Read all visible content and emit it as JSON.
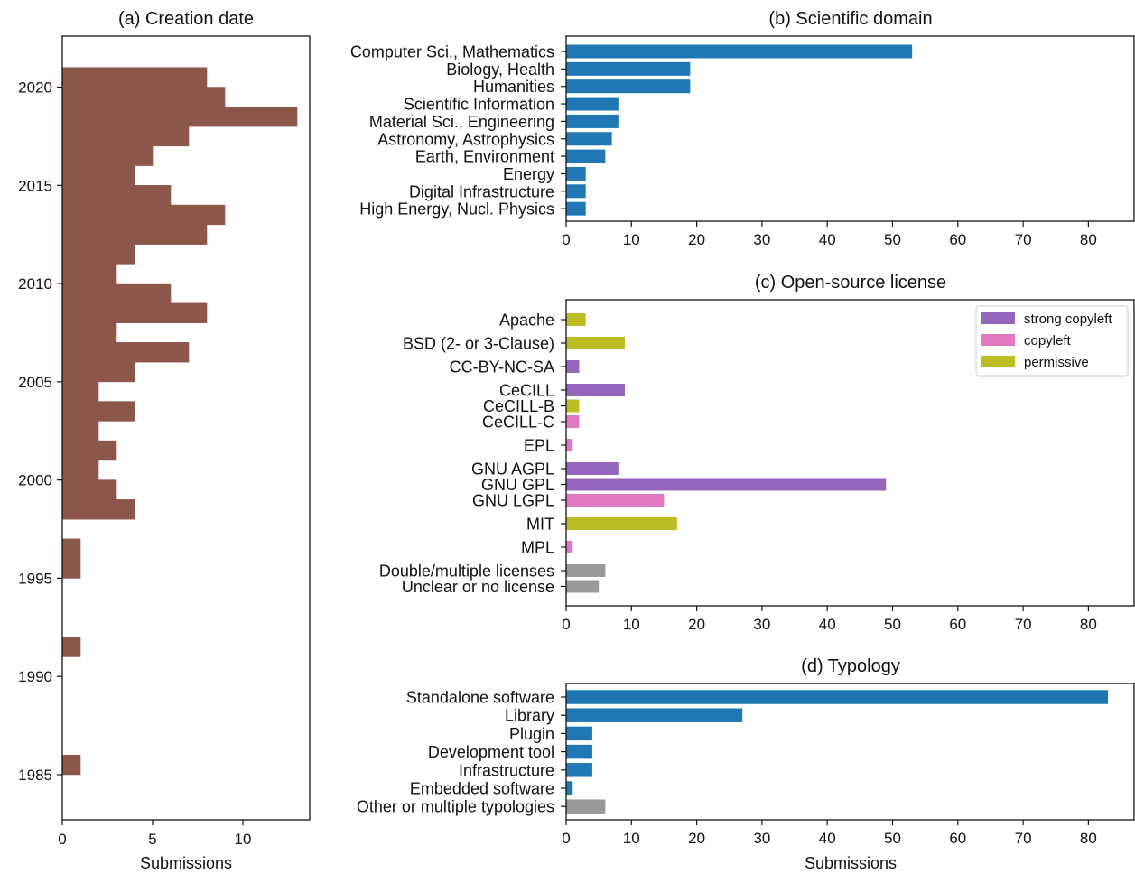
{
  "chart_data": [
    {
      "type": "bar",
      "orientation": "horizontal",
      "title": "(a) Creation date",
      "xlabel": "Submissions",
      "ylabel": "",
      "xlim": [
        0,
        13.7
      ],
      "ylim": [
        1982.7,
        2022.6
      ],
      "xticks": [
        0,
        5,
        10
      ],
      "yticks": [
        1985,
        1990,
        1995,
        2000,
        2005,
        2010,
        2015,
        2020
      ],
      "color": "#8c564b",
      "bins": [
        {
          "year": 1985,
          "value": 1
        },
        {
          "year": 1991,
          "value": 1
        },
        {
          "year": 1995,
          "value": 1
        },
        {
          "year": 1996,
          "value": 1
        },
        {
          "year": 1998,
          "value": 4
        },
        {
          "year": 1999,
          "value": 3
        },
        {
          "year": 2000,
          "value": 2
        },
        {
          "year": 2001,
          "value": 3
        },
        {
          "year": 2002,
          "value": 2
        },
        {
          "year": 2003,
          "value": 4
        },
        {
          "year": 2004,
          "value": 2
        },
        {
          "year": 2005,
          "value": 4
        },
        {
          "year": 2006,
          "value": 7
        },
        {
          "year": 2007,
          "value": 3
        },
        {
          "year": 2008,
          "value": 8
        },
        {
          "year": 2009,
          "value": 6
        },
        {
          "year": 2010,
          "value": 3
        },
        {
          "year": 2011,
          "value": 4
        },
        {
          "year": 2012,
          "value": 8
        },
        {
          "year": 2013,
          "value": 9
        },
        {
          "year": 2014,
          "value": 6
        },
        {
          "year": 2015,
          "value": 4
        },
        {
          "year": 2016,
          "value": 5
        },
        {
          "year": 2017,
          "value": 7
        },
        {
          "year": 2018,
          "value": 13
        },
        {
          "year": 2019,
          "value": 9
        },
        {
          "year": 2020,
          "value": 8
        }
      ]
    },
    {
      "type": "bar",
      "orientation": "horizontal",
      "title": "(b) Scientific domain",
      "xlabel": "",
      "xlim": [
        0,
        87
      ],
      "xticks": [
        0,
        10,
        20,
        30,
        40,
        50,
        60,
        70,
        80
      ],
      "categories": [
        "Computer Sci., Mathematics",
        "Biology, Health",
        "Humanities",
        "Scientific Information",
        "Material Sci., Engineering",
        "Astronomy, Astrophysics",
        "Earth, Environment",
        "Energy",
        "Digital Infrastructure",
        "High Energy, Nucl. Physics"
      ],
      "values": [
        53,
        19,
        19,
        8,
        8,
        7,
        6,
        3,
        3,
        3
      ],
      "color": "#1f77b4"
    },
    {
      "type": "bar",
      "orientation": "horizontal",
      "title": "(c) Open-source license",
      "xlabel": "",
      "xlim": [
        0,
        87
      ],
      "xticks": [
        0,
        10,
        20,
        30,
        40,
        50,
        60,
        70,
        80
      ],
      "categories": [
        "Apache",
        "BSD (2- or 3-Clause)",
        "CC-BY-NC-SA",
        "CeCILL",
        "CeCILL-B",
        "CeCILL-C",
        "EPL",
        "GNU AGPL",
        "GNU GPL",
        "GNU LGPL",
        "MIT",
        "MPL",
        "Double/multiple licenses",
        "Unclear or no license"
      ],
      "values": [
        3,
        9,
        2,
        9,
        2,
        2,
        1,
        8,
        49,
        15,
        17,
        1,
        6,
        5
      ],
      "bar_categories": [
        "permissive",
        "permissive",
        "strong copyleft",
        "strong copyleft",
        "permissive",
        "copyleft",
        "copyleft",
        "strong copyleft",
        "strong copyleft",
        "copyleft",
        "permissive",
        "copyleft",
        "other",
        "other"
      ],
      "legend_position": "top-right",
      "legend": [
        {
          "name": "strong copyleft",
          "color": "#9467bd"
        },
        {
          "name": "copyleft",
          "color": "#e377c2"
        },
        {
          "name": "permissive",
          "color": "#bcbd22"
        }
      ],
      "colors": {
        "strong copyleft": "#9467bd",
        "copyleft": "#e377c2",
        "permissive": "#bcbd22",
        "other": "#999999"
      }
    },
    {
      "type": "bar",
      "orientation": "horizontal",
      "title": "(d) Typology",
      "xlabel": "Submissions",
      "xlim": [
        0,
        87
      ],
      "xticks": [
        0,
        10,
        20,
        30,
        40,
        50,
        60,
        70,
        80
      ],
      "categories": [
        "Standalone software",
        "Library",
        "Plugin",
        "Development tool",
        "Infrastructure",
        "Embedded software",
        "Other or multiple typologies"
      ],
      "values": [
        83,
        27,
        4,
        4,
        4,
        1,
        6
      ],
      "bar_colors": [
        "#1f77b4",
        "#1f77b4",
        "#1f77b4",
        "#1f77b4",
        "#1f77b4",
        "#1f77b4",
        "#999999"
      ]
    }
  ]
}
